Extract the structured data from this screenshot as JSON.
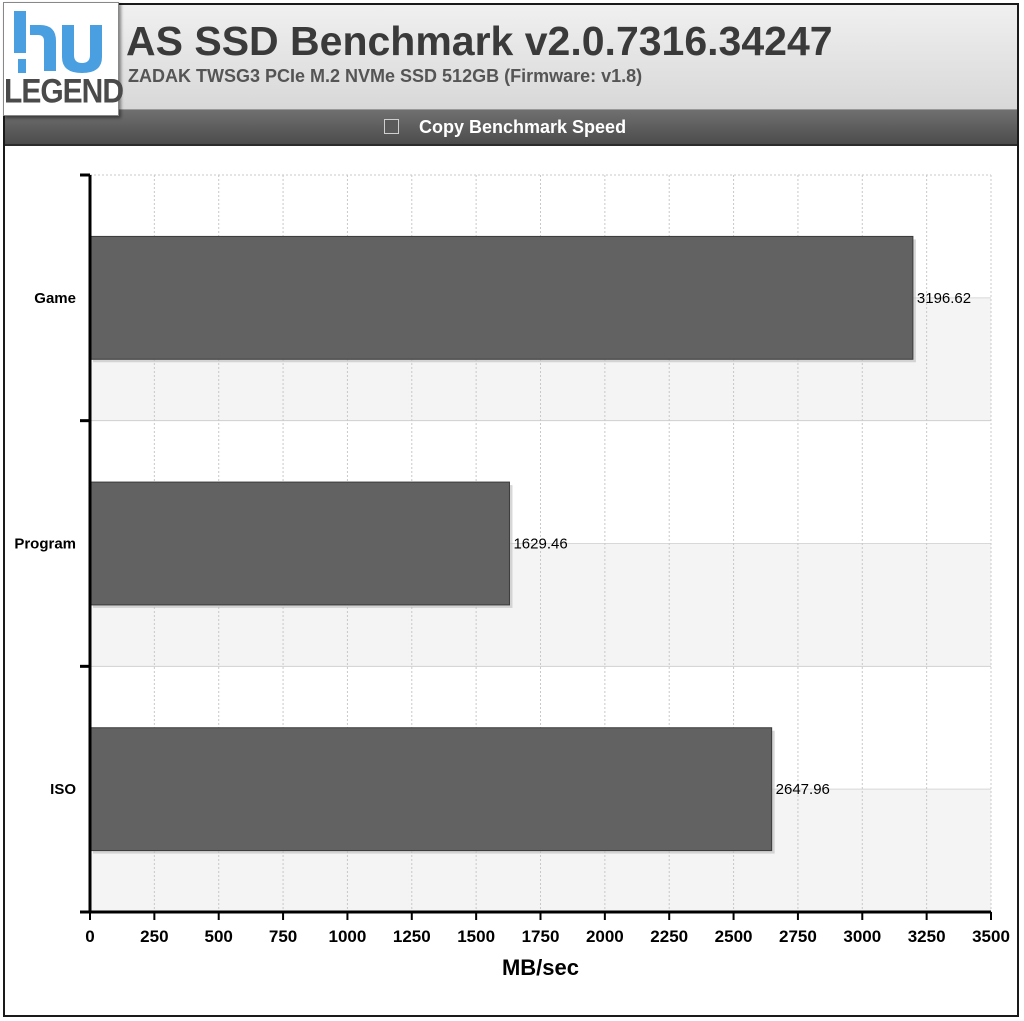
{
  "header": {
    "logo_text": "LEGEND",
    "title": "AS SSD Benchmark v2.0.7316.34247",
    "subtitle": "ZADAK TWSG3 PCIe M.2 NVMe SSD 512GB (Firmware: v1.8)"
  },
  "colors": {
    "bar": "#626262",
    "header_bar": "#5a5a5a",
    "logo": "#4a9fe0"
  },
  "chart_data": {
    "type": "bar",
    "orientation": "horizontal",
    "categories": [
      "Game",
      "Program",
      "ISO"
    ],
    "series": [
      {
        "name": "Copy Benchmark Speed",
        "values": [
          3196.62,
          1629.46,
          2647.96
        ]
      }
    ],
    "value_labels": [
      "3196.62",
      "1629.46",
      "2647.96"
    ],
    "xlabel": "MB/sec",
    "ylabel": "",
    "xlim": [
      0,
      3500
    ],
    "xticks": [
      0,
      250,
      500,
      750,
      1000,
      1250,
      1500,
      1750,
      2000,
      2250,
      2500,
      2750,
      3000,
      3250,
      3500
    ],
    "legend_position": "top",
    "grid": true
  }
}
